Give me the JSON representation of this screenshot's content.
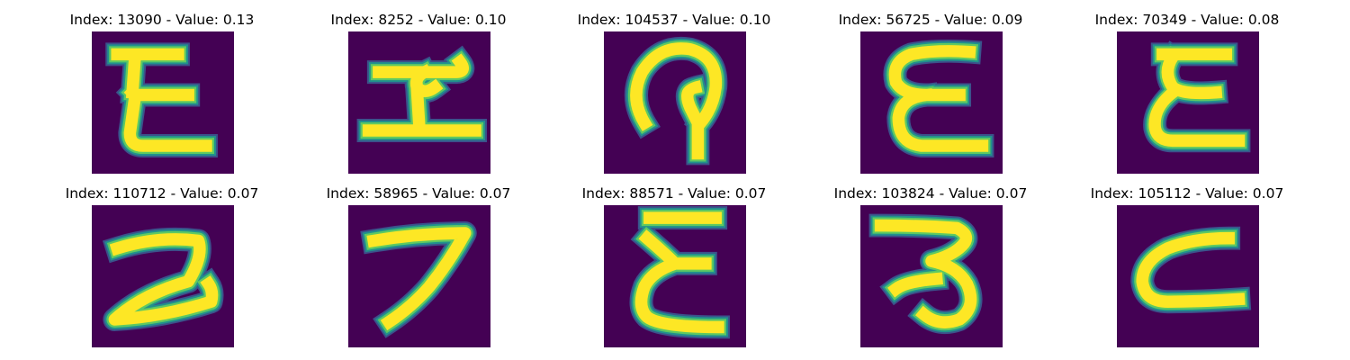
{
  "colors": {
    "background": "#440154",
    "stroke_core": "#fde725",
    "stroke_edge_1": "#5ec962",
    "stroke_edge_2": "#21918c",
    "stroke_edge_3": "#3b528b"
  },
  "panels": [
    {
      "title": "Index: 13090 - Value: 0.13",
      "glyph": "E"
    },
    {
      "title": "Index: 8252 - Value: 0.10",
      "glyph": "pi-like"
    },
    {
      "title": "Index: 104537 - Value: 0.10",
      "glyph": "loop"
    },
    {
      "title": "Index: 56725 - Value: 0.09",
      "glyph": "E"
    },
    {
      "title": "Index: 70349 - Value: 0.08",
      "glyph": "E"
    },
    {
      "title": "Index: 110712 - Value: 0.07",
      "glyph": "Z"
    },
    {
      "title": "Index: 58965 - Value: 0.07",
      "glyph": "7"
    },
    {
      "title": "Index: 88571 - Value: 0.07",
      "glyph": "E"
    },
    {
      "title": "Index: 103824 - Value: 0.07",
      "glyph": "3"
    },
    {
      "title": "Index: 105112 - Value: 0.07",
      "glyph": "C"
    }
  ]
}
